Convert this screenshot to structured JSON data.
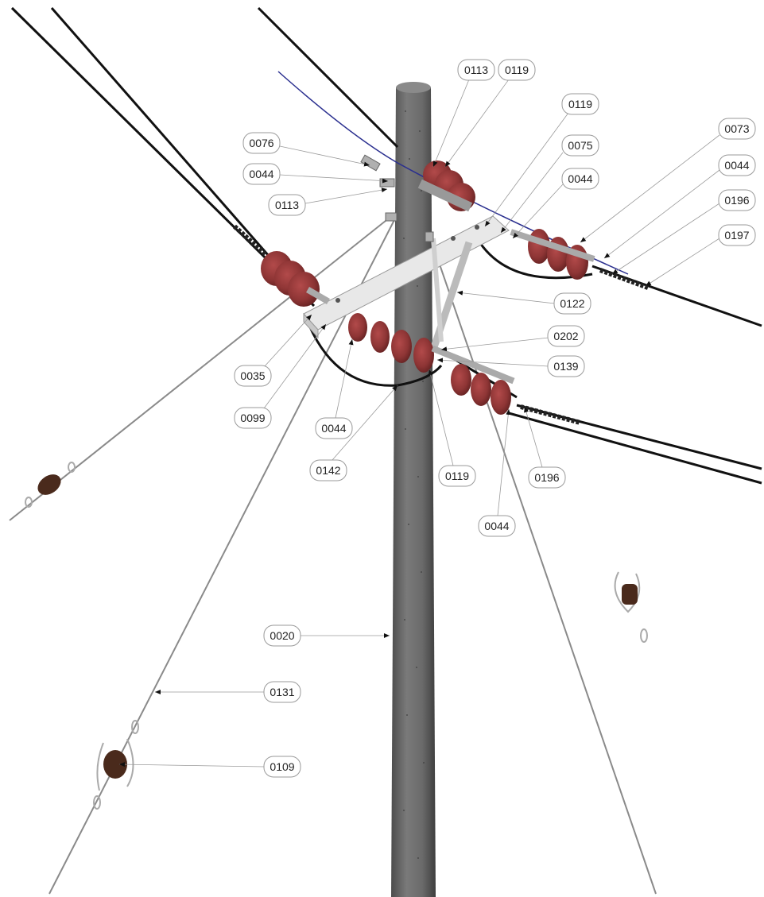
{
  "diagram": {
    "colors": {
      "pole": "#6e6e6e",
      "pole_dark": "#4a4a4a",
      "insulator": "#8e3535",
      "insulator_dark": "#6a2424",
      "crossarm": "#e6e6e6",
      "conductor": "#111111",
      "guy_wire": "#8a8a8a",
      "blue_wire": "#2a2f8f",
      "leader": "#9a9a9a",
      "label_border": "#9a9a9a"
    },
    "callouts": [
      {
        "id": "c1",
        "text": "0113"
      },
      {
        "id": "c2",
        "text": "0119"
      },
      {
        "id": "c3",
        "text": "0119"
      },
      {
        "id": "c4",
        "text": "0076"
      },
      {
        "id": "c5",
        "text": "0075"
      },
      {
        "id": "c6",
        "text": "0073"
      },
      {
        "id": "c7",
        "text": "0044"
      },
      {
        "id": "c8",
        "text": "0044"
      },
      {
        "id": "c9",
        "text": "0044"
      },
      {
        "id": "c10",
        "text": "0113"
      },
      {
        "id": "c11",
        "text": "0196"
      },
      {
        "id": "c12",
        "text": "0197"
      },
      {
        "id": "c13",
        "text": "0122"
      },
      {
        "id": "c14",
        "text": "0202"
      },
      {
        "id": "c15",
        "text": "0139"
      },
      {
        "id": "c16",
        "text": "0035"
      },
      {
        "id": "c17",
        "text": "0099"
      },
      {
        "id": "c18",
        "text": "0044"
      },
      {
        "id": "c19",
        "text": "0142"
      },
      {
        "id": "c20",
        "text": "0119"
      },
      {
        "id": "c21",
        "text": "0196"
      },
      {
        "id": "c22",
        "text": "0044"
      },
      {
        "id": "c23",
        "text": "0131"
      },
      {
        "id": "c24",
        "text": "0109"
      },
      {
        "id": "c25",
        "text": "0020"
      }
    ]
  }
}
